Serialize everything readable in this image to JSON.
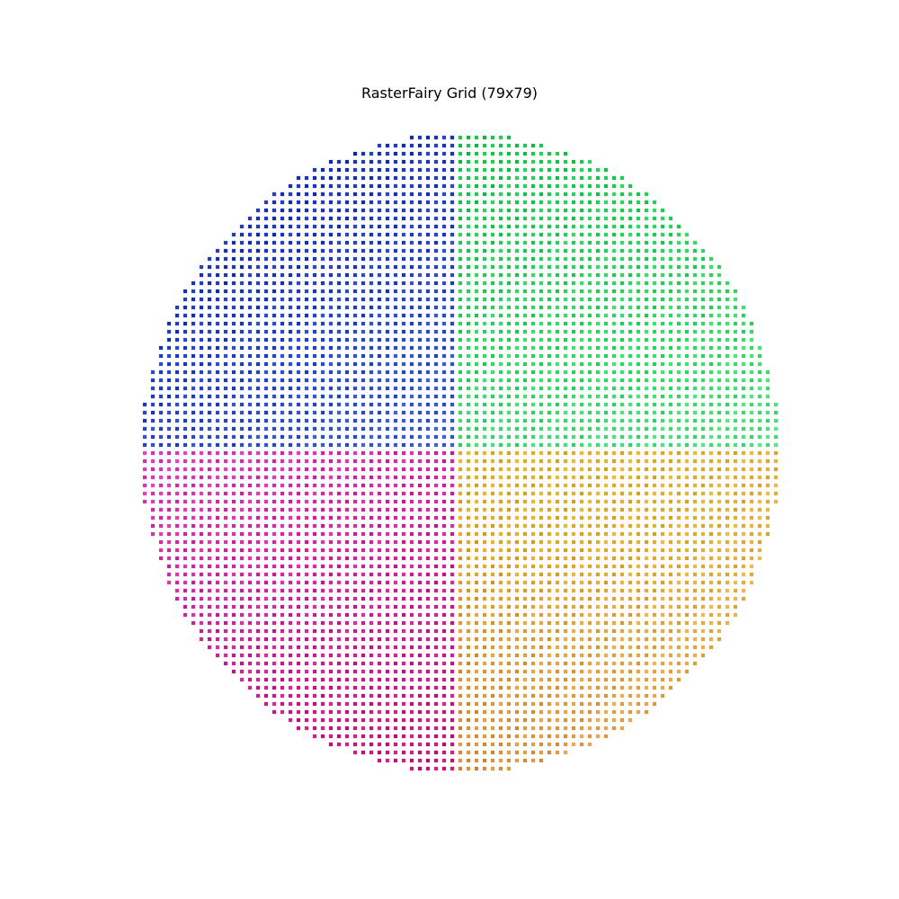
{
  "chart_data": {
    "type": "scatter",
    "title": "RasterFairy Grid (79x79)",
    "xlabel": "",
    "ylabel": "",
    "grid": false,
    "axes_visible": false,
    "marker": "square",
    "layout": "circular grid",
    "grid_size": [
      79,
      79
    ],
    "quadrants": [
      {
        "name": "",
        "position": "top-left",
        "color_family": "blue",
        "colors": [
          "#0a1fa8",
          "#2f4fd0",
          "#4a6fe0",
          "#5a9ff0"
        ]
      },
      {
        "name": "",
        "position": "top-right",
        "color_family": "green",
        "colors": [
          "#15b040",
          "#20d050",
          "#40f090",
          "#70f5a0"
        ]
      },
      {
        "name": "",
        "position": "bottom-left",
        "color_family": "magenta",
        "colors": [
          "#f060e0",
          "#d000d0",
          "#c01890",
          "#d0105a"
        ]
      },
      {
        "name": "",
        "position": "bottom-right",
        "color_family": "yellow-orange",
        "colors": [
          "#f5f530",
          "#d0b000",
          "#b86a10",
          "#f0b060"
        ]
      }
    ]
  }
}
